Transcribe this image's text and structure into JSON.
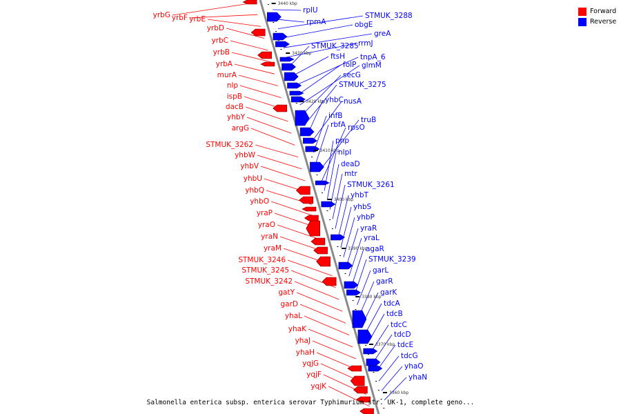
{
  "colors": {
    "forward": "#ff0000",
    "reverse": "#0000ff",
    "axis": "#8a8a8a",
    "tick": "#000000"
  },
  "legend": [
    {
      "label": "Forward",
      "color": "#ff0000"
    },
    {
      "label": "Reverse",
      "color": "#0000ff"
    }
  ],
  "caption": "Salmonella enterica subsp. enterica serovar Typhimurium str. UK-1, complete geno...",
  "ticks": [
    {
      "kbp": 3440,
      "label": "3440 kbp"
    },
    {
      "kbp": 3430,
      "label": "3430 kbp"
    },
    {
      "kbp": 3420,
      "label": "3420 kbp"
    },
    {
      "kbp": 3410,
      "label": "3410 kbp"
    },
    {
      "kbp": 3400,
      "label": "3400 kbp"
    },
    {
      "kbp": 3390,
      "label": "3390 kbp"
    },
    {
      "kbp": 3380,
      "label": "3380 kbp"
    },
    {
      "kbp": 3370,
      "label": "3370 kbp"
    },
    {
      "kbp": 3360,
      "label": "3360 kbp"
    }
  ],
  "forward_genes": [
    "yrbG",
    "yrbF",
    "yrbE",
    "yrbD",
    "yrbC",
    "yrbB",
    "yrbA",
    "murA",
    "nlp",
    "ispB",
    "dacB",
    "yhbY",
    "argG",
    "STMUK_3262",
    "yhbW",
    "yhbV",
    "yhbU",
    "yhbQ",
    "yhbO",
    "yraP",
    "yraO",
    "yraN",
    "yraM",
    "STMUK_3246",
    "STMUK_3245",
    "STMUK_3242",
    "gatY",
    "garD",
    "yhaL",
    "yhaK",
    "yhaJ",
    "yhaH",
    "yqjG",
    "yqjF",
    "yqjK"
  ],
  "reverse_genes": [
    "rplU",
    "rpmA",
    "STMUK_3288",
    "obgE",
    "greA",
    "rrmJ",
    "STMUK_3285",
    "ftsH",
    "tnpA_6",
    "folP",
    "glmM",
    "secG",
    "STMUK_3275",
    "yhbC",
    "nusA",
    "infB",
    "rbfA",
    "truB",
    "rpsO",
    "pnp",
    "nlpI",
    "deaD",
    "mtr",
    "STMUK_3261",
    "yhbT",
    "yhbS",
    "yhbP",
    "yraR",
    "yraL",
    "agaR",
    "STMUK_3239",
    "garL",
    "garR",
    "garK",
    "tdcA",
    "tdcB",
    "tdcC",
    "tdcD",
    "tdcE",
    "tdcG",
    "yhaO",
    "yhaN"
  ]
}
